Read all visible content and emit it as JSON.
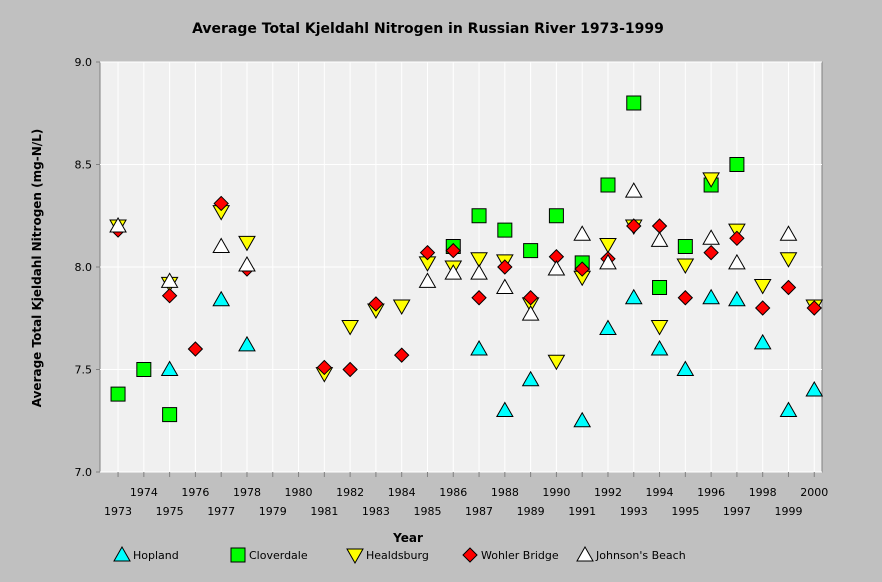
{
  "chart_data": {
    "type": "scatter",
    "title": "Average Total Kjeldahl Nitrogen in Russian River 1973-1999",
    "xlabel": "Year",
    "ylabel": "Average Total Kjeldahl Nitrogen (mg-N/L)",
    "xlim": [
      1972.3,
      2000.3
    ],
    "ylim": [
      7.0,
      9.0
    ],
    "yticks": [
      "7.0",
      "7.5",
      "8.0",
      "8.5",
      "9.0"
    ],
    "xticks": [
      "1973",
      "1974",
      "1975",
      "1976",
      "1977",
      "1978",
      "1979",
      "1980",
      "1981",
      "1982",
      "1983",
      "1984",
      "1985",
      "1986",
      "1987",
      "1988",
      "1989",
      "1990",
      "1991",
      "1992",
      "1993",
      "1994",
      "1995",
      "1996",
      "1997",
      "1998",
      "1999",
      "2000"
    ],
    "grid": "vertical gridlines at each year, horizontal gridlines at 0.5",
    "legend_position": "bottom",
    "series": [
      {
        "name": "Hopland",
        "marker": "triangle-up",
        "color": "#00ffff",
        "points": [
          [
            1975,
            7.5
          ],
          [
            1977,
            7.84
          ],
          [
            1978,
            7.62
          ],
          [
            1987,
            7.6
          ],
          [
            1988,
            7.3
          ],
          [
            1989,
            7.45
          ],
          [
            1991,
            7.25
          ],
          [
            1992,
            7.7
          ],
          [
            1993,
            7.85
          ],
          [
            1994,
            7.6
          ],
          [
            1995,
            7.5
          ],
          [
            1996,
            7.85
          ],
          [
            1997,
            7.84
          ],
          [
            1998,
            7.63
          ],
          [
            1999,
            7.3
          ],
          [
            2000,
            7.4
          ]
        ]
      },
      {
        "name": "Cloverdale",
        "marker": "square",
        "color": "#00ff00",
        "points": [
          [
            1973,
            7.38
          ],
          [
            1974,
            7.5
          ],
          [
            1975,
            7.28
          ],
          [
            1986,
            8.1
          ],
          [
            1987,
            8.25
          ],
          [
            1988,
            8.18
          ],
          [
            1989,
            8.08
          ],
          [
            1990,
            8.25
          ],
          [
            1991,
            8.02
          ],
          [
            1992,
            8.4
          ],
          [
            1993,
            8.8
          ],
          [
            1994,
            7.9
          ],
          [
            1995,
            8.1
          ],
          [
            1996,
            8.4
          ],
          [
            1997,
            8.5
          ]
        ]
      },
      {
        "name": "Healdsburg",
        "marker": "triangle-down",
        "color": "#ffff00",
        "points": [
          [
            1973,
            8.2
          ],
          [
            1975,
            7.92
          ],
          [
            1977,
            8.27
          ],
          [
            1978,
            8.12
          ],
          [
            1981,
            7.48
          ],
          [
            1982,
            7.71
          ],
          [
            1983,
            7.79
          ],
          [
            1984,
            7.81
          ],
          [
            1985,
            8.02
          ],
          [
            1986,
            8.0
          ],
          [
            1987,
            8.04
          ],
          [
            1988,
            8.03
          ],
          [
            1989,
            7.82
          ],
          [
            1990,
            7.54
          ],
          [
            1991,
            7.95
          ],
          [
            1992,
            8.11
          ],
          [
            1993,
            8.2
          ],
          [
            1994,
            7.71
          ],
          [
            1995,
            8.01
          ],
          [
            1996,
            8.43
          ],
          [
            1997,
            8.18
          ],
          [
            1998,
            7.91
          ],
          [
            1999,
            8.04
          ],
          [
            2000,
            7.81
          ]
        ]
      },
      {
        "name": "Wohler Bridge",
        "marker": "diamond",
        "color": "#ff0000",
        "points": [
          [
            1973,
            8.18
          ],
          [
            1975,
            7.86
          ],
          [
            1976,
            7.6
          ],
          [
            1977,
            8.31
          ],
          [
            1978,
            7.99
          ],
          [
            1981,
            7.51
          ],
          [
            1982,
            7.5
          ],
          [
            1983,
            7.82
          ],
          [
            1984,
            7.57
          ],
          [
            1985,
            8.07
          ],
          [
            1986,
            8.08
          ],
          [
            1987,
            7.85
          ],
          [
            1988,
            8.0
          ],
          [
            1989,
            7.85
          ],
          [
            1990,
            8.05
          ],
          [
            1991,
            7.99
          ],
          [
            1992,
            8.04
          ],
          [
            1993,
            8.2
          ],
          [
            1994,
            8.2
          ],
          [
            1995,
            7.85
          ],
          [
            1996,
            8.07
          ],
          [
            1997,
            8.14
          ],
          [
            1998,
            7.8
          ],
          [
            1999,
            7.9
          ],
          [
            2000,
            7.8
          ]
        ]
      },
      {
        "name": "Johnson's Beach",
        "marker": "triangle-up-open",
        "color": "#ffffff",
        "points": [
          [
            1973,
            8.2
          ],
          [
            1975,
            7.93
          ],
          [
            1977,
            8.1
          ],
          [
            1978,
            8.01
          ],
          [
            1985,
            7.93
          ],
          [
            1986,
            7.97
          ],
          [
            1987,
            7.97
          ],
          [
            1988,
            7.9
          ],
          [
            1989,
            7.77
          ],
          [
            1990,
            7.99
          ],
          [
            1991,
            8.16
          ],
          [
            1992,
            8.02
          ],
          [
            1993,
            8.37
          ],
          [
            1994,
            8.13
          ],
          [
            1996,
            8.14
          ],
          [
            1997,
            8.02
          ],
          [
            1999,
            8.16
          ]
        ]
      }
    ]
  }
}
